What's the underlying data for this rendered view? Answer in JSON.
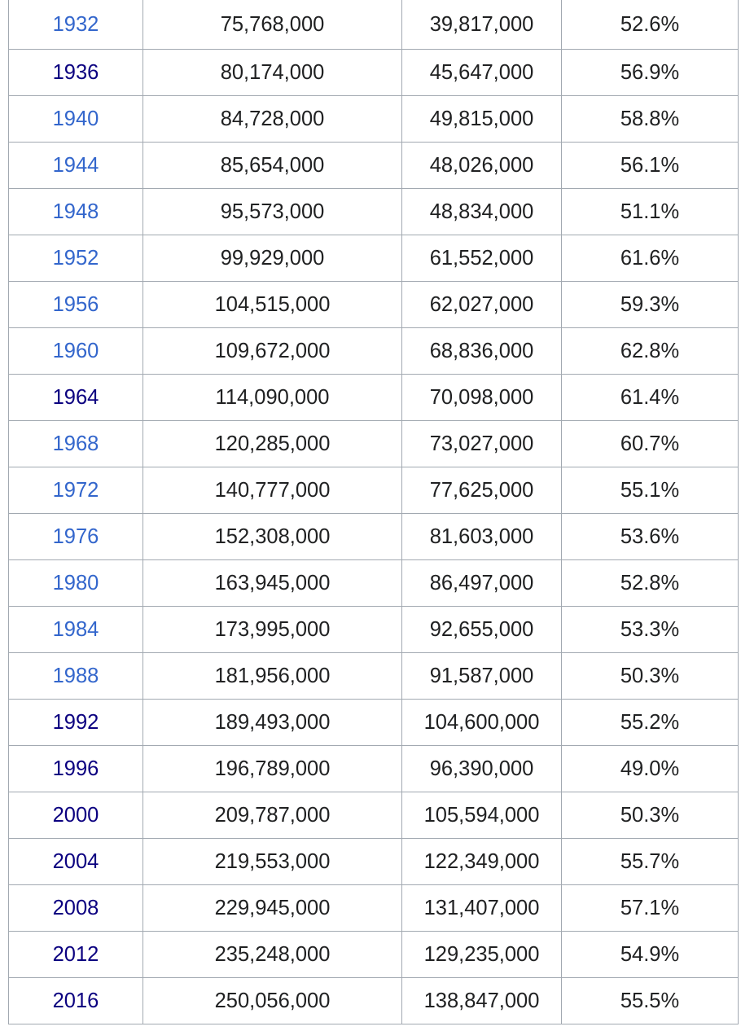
{
  "table": {
    "rows": [
      {
        "cells": [
          "1932",
          "75,768,000",
          "39,817,000",
          "52.6%"
        ],
        "link_color": "#3366cc"
      },
      {
        "cells": [
          "1936",
          "80,174,000",
          "45,647,000",
          "56.9%"
        ],
        "link_color": "#0b0080"
      },
      {
        "cells": [
          "1940",
          "84,728,000",
          "49,815,000",
          "58.8%"
        ],
        "link_color": "#3366cc"
      },
      {
        "cells": [
          "1944",
          "85,654,000",
          "48,026,000",
          "56.1%"
        ],
        "link_color": "#3366cc"
      },
      {
        "cells": [
          "1948",
          "95,573,000",
          "48,834,000",
          "51.1%"
        ],
        "link_color": "#3366cc"
      },
      {
        "cells": [
          "1952",
          "99,929,000",
          "61,552,000",
          "61.6%"
        ],
        "link_color": "#3366cc"
      },
      {
        "cells": [
          "1956",
          "104,515,000",
          "62,027,000",
          "59.3%"
        ],
        "link_color": "#3366cc"
      },
      {
        "cells": [
          "1960",
          "109,672,000",
          "68,836,000",
          "62.8%"
        ],
        "link_color": "#3366cc"
      },
      {
        "cells": [
          "1964",
          "114,090,000",
          "70,098,000",
          "61.4%"
        ],
        "link_color": "#0b0080"
      },
      {
        "cells": [
          "1968",
          "120,285,000",
          "73,027,000",
          "60.7%"
        ],
        "link_color": "#3366cc"
      },
      {
        "cells": [
          "1972",
          "140,777,000",
          "77,625,000",
          "55.1%"
        ],
        "link_color": "#3366cc"
      },
      {
        "cells": [
          "1976",
          "152,308,000",
          "81,603,000",
          "53.6%"
        ],
        "link_color": "#3366cc"
      },
      {
        "cells": [
          "1980",
          "163,945,000",
          "86,497,000",
          "52.8%"
        ],
        "link_color": "#3366cc"
      },
      {
        "cells": [
          "1984",
          "173,995,000",
          "92,655,000",
          "53.3%"
        ],
        "link_color": "#3366cc"
      },
      {
        "cells": [
          "1988",
          "181,956,000",
          "91,587,000",
          "50.3%"
        ],
        "link_color": "#3366cc"
      },
      {
        "cells": [
          "1992",
          "189,493,000",
          "104,600,000",
          "55.2%"
        ],
        "link_color": "#0b0080"
      },
      {
        "cells": [
          "1996",
          "196,789,000",
          "96,390,000",
          "49.0%"
        ],
        "link_color": "#0b0080"
      },
      {
        "cells": [
          "2000",
          "209,787,000",
          "105,594,000",
          "50.3%"
        ],
        "link_color": "#0b0080"
      },
      {
        "cells": [
          "2004",
          "219,553,000",
          "122,349,000",
          "55.7%"
        ],
        "link_color": "#0b0080"
      },
      {
        "cells": [
          "2008",
          "229,945,000",
          "131,407,000",
          "57.1%"
        ],
        "link_color": "#0b0080"
      },
      {
        "cells": [
          "2012",
          "235,248,000",
          "129,235,000",
          "54.9%"
        ],
        "link_color": "#0b0080"
      },
      {
        "cells": [
          "2016",
          "250,056,000",
          "138,847,000",
          "55.5%"
        ],
        "link_color": "#0b0080"
      }
    ]
  }
}
